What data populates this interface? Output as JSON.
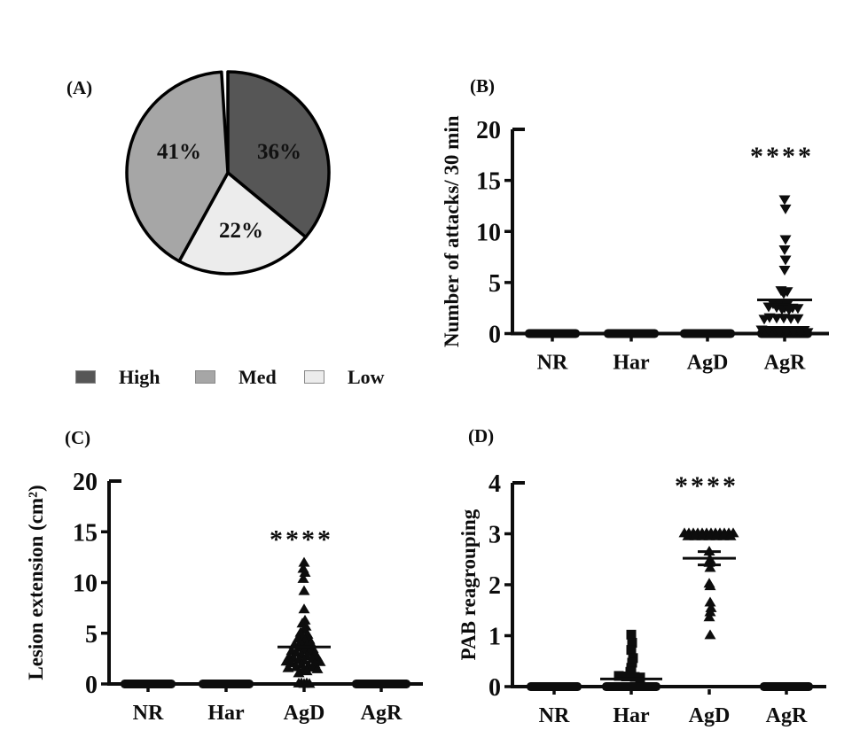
{
  "chart_data": [
    {
      "type": "pie",
      "panel": "(A)",
      "slices_clockwise_from_top": [
        {
          "name": "High",
          "pct": 36,
          "pct_label": "36%",
          "color": "#565656"
        },
        {
          "name": "Low",
          "pct": 22,
          "pct_label": "22%",
          "color": "#ececec"
        },
        {
          "name": "Med",
          "pct": 41,
          "pct_label": "41%",
          "color": "#a6a6a6"
        }
      ],
      "legend": [
        {
          "name": "High",
          "color": "#565656"
        },
        {
          "name": "Med",
          "color": "#a6a6a6"
        },
        {
          "name": "Low",
          "color": "#ececec"
        }
      ]
    },
    {
      "type": "scatter",
      "panel": "(B)",
      "ylabel": "Number of attacks/ 30 min",
      "ylim": [
        0,
        20
      ],
      "yticks": [
        0,
        5,
        10,
        15,
        20
      ],
      "categories": [
        "NR",
        "Har",
        "AgD",
        "AgR"
      ],
      "significance": {
        "text": "****",
        "category": "AgR",
        "y": 17.4
      },
      "groups": [
        {
          "category": "NR",
          "marker": "tri-down",
          "zero_bar": true,
          "bar_halfwidth": 31,
          "points": []
        },
        {
          "category": "Har",
          "marker": "tri-down",
          "zero_bar": true,
          "bar_halfwidth": 31,
          "points": []
        },
        {
          "category": "AgD",
          "marker": "tri-down",
          "zero_bar": true,
          "bar_halfwidth": 31,
          "points": []
        },
        {
          "category": "AgR",
          "marker": "tri-down",
          "zero_bar": true,
          "bar_halfwidth": 31,
          "mean": 3.3,
          "mean_halfwidth": 31,
          "points": [
            [
              0,
              13.1
            ],
            [
              1,
              12.2
            ],
            [
              1,
              9.2
            ],
            [
              0,
              8.2
            ],
            [
              1,
              7.2
            ],
            [
              0,
              6.2
            ],
            [
              -4,
              4.2
            ],
            [
              3,
              4.1
            ],
            [
              -1,
              3.9
            ],
            [
              -13,
              2.9
            ],
            [
              -5,
              2.85
            ],
            [
              3,
              2.8
            ],
            [
              -18,
              2.6
            ],
            [
              -9,
              2.55
            ],
            [
              0,
              2.5
            ],
            [
              9,
              2.5
            ],
            [
              15,
              2.45
            ],
            [
              -3,
              2.35
            ],
            [
              5,
              2.3
            ],
            [
              -17,
              1.55
            ],
            [
              -9,
              1.5
            ],
            [
              -1,
              1.5
            ],
            [
              7,
              1.45
            ],
            [
              15,
              1.45
            ],
            [
              -23,
              1.4
            ],
            [
              -26,
              0.35
            ],
            [
              -18,
              0.3
            ],
            [
              -10,
              0.3
            ],
            [
              -2,
              0.3
            ],
            [
              6,
              0.3
            ],
            [
              14,
              0.3
            ],
            [
              22,
              0.3
            ],
            [
              -6,
              0.12
            ],
            [
              2,
              0.1
            ],
            [
              10,
              0.12
            ],
            [
              18,
              0.08
            ],
            [
              26,
              0.1
            ]
          ]
        }
      ]
    },
    {
      "type": "scatter",
      "panel": "(C)",
      "ylabel": "Lesion extension (cm²)",
      "ylim": [
        0,
        20
      ],
      "yticks": [
        0,
        5,
        10,
        15,
        20
      ],
      "categories": [
        "NR",
        "Har",
        "AgD",
        "AgR"
      ],
      "significance": {
        "text": "****",
        "category": "AgD",
        "y": 14.3
      },
      "groups": [
        {
          "category": "NR",
          "marker": "tri-up",
          "zero_bar": true,
          "bar_halfwidth": 31,
          "points": []
        },
        {
          "category": "Har",
          "marker": "tri-up",
          "zero_bar": true,
          "bar_halfwidth": 31,
          "points": []
        },
        {
          "category": "AgD",
          "marker": "tri-up",
          "zero_bar": false,
          "bar_halfwidth": 31,
          "mean": 3.65,
          "mean_halfwidth": 30,
          "points": [
            [
              0,
              12.0
            ],
            [
              -1,
              11.4
            ],
            [
              1,
              11.0
            ],
            [
              -1,
              10.4
            ],
            [
              0,
              9.2
            ],
            [
              0,
              7.4
            ],
            [
              1,
              6.3
            ],
            [
              -2,
              6.0
            ],
            [
              2,
              5.7
            ],
            [
              0,
              5.4
            ],
            [
              -4,
              5.1
            ],
            [
              4,
              4.9
            ],
            [
              -1,
              4.7
            ],
            [
              -7,
              4.5
            ],
            [
              6,
              4.4
            ],
            [
              1,
              4.3
            ],
            [
              -4,
              4.1
            ],
            [
              8,
              4.0
            ],
            [
              -11,
              3.9
            ],
            [
              3,
              3.8
            ],
            [
              -6,
              3.6
            ],
            [
              10,
              3.5
            ],
            [
              0,
              3.4
            ],
            [
              -14,
              3.3
            ],
            [
              6,
              3.2
            ],
            [
              -9,
              3.1
            ],
            [
              12,
              3.0
            ],
            [
              -3,
              2.9
            ],
            [
              3,
              2.8
            ],
            [
              -17,
              2.7
            ],
            [
              15,
              2.65
            ],
            [
              -12,
              2.55
            ],
            [
              9,
              2.5
            ],
            [
              -6,
              2.4
            ],
            [
              0,
              2.35
            ],
            [
              -20,
              2.25
            ],
            [
              18,
              2.2
            ],
            [
              -15,
              2.1
            ],
            [
              12,
              2.0
            ],
            [
              -3,
              1.95
            ],
            [
              5,
              1.85
            ],
            [
              -9,
              1.7
            ],
            [
              9,
              1.65
            ],
            [
              -18,
              1.6
            ],
            [
              15,
              1.5
            ],
            [
              -1,
              1.4
            ],
            [
              3,
              1.3
            ],
            [
              -6,
              1.1
            ],
            [
              -3,
              0.12
            ],
            [
              0,
              0.06
            ],
            [
              3,
              0.12
            ],
            [
              6,
              0.06
            ],
            [
              -6,
              0.1
            ]
          ]
        },
        {
          "category": "AgR",
          "marker": "tri-up",
          "zero_bar": true,
          "bar_halfwidth": 33,
          "points": []
        }
      ]
    },
    {
      "type": "scatter",
      "panel": "(D)",
      "ylabel": "PAB reagrouping",
      "ylim": [
        0,
        4
      ],
      "yticks": [
        0,
        1,
        2,
        3,
        4
      ],
      "categories": [
        "NR",
        "Har",
        "AgD",
        "AgR"
      ],
      "significance": {
        "text": "****",
        "category": "AgD",
        "y": 3.95
      },
      "groups": [
        {
          "category": "NR",
          "marker": "square",
          "zero_bar": true,
          "bar_halfwidth": 31,
          "points": []
        },
        {
          "category": "Har",
          "marker": "square",
          "zero_bar": true,
          "bar_halfwidth": 33,
          "mean": 0.15,
          "mean_halfwidth": 35,
          "points": [
            [
              0,
              1.02
            ],
            [
              1,
              0.86
            ],
            [
              0,
              0.72
            ],
            [
              2,
              0.56
            ],
            [
              1,
              0.47
            ],
            [
              0,
              0.37
            ],
            [
              -1,
              0.29
            ],
            [
              -14,
              0.21
            ],
            [
              -6,
              0.2
            ],
            [
              4,
              0.19
            ],
            [
              10,
              0.18
            ]
          ]
        },
        {
          "category": "AgD",
          "marker": "tri-up",
          "zero_bar": false,
          "bar_halfwidth": 31,
          "mean": 2.52,
          "mean_halfwidth": 30,
          "sem": 0.13,
          "points": [
            [
              -28,
              3.02
            ],
            [
              -23,
              3.02
            ],
            [
              -18,
              3.02
            ],
            [
              -13,
              3.02
            ],
            [
              -8,
              3.02
            ],
            [
              -3,
              3.02
            ],
            [
              2,
              3.02
            ],
            [
              7,
              3.02
            ],
            [
              12,
              3.02
            ],
            [
              17,
              3.02
            ],
            [
              22,
              3.02
            ],
            [
              27,
              3.02
            ],
            [
              -24,
              2.96
            ],
            [
              -16,
              2.96
            ],
            [
              -8,
              2.96
            ],
            [
              0,
              2.96
            ],
            [
              8,
              2.96
            ],
            [
              16,
              2.96
            ],
            [
              24,
              2.96
            ],
            [
              0,
              2.66
            ],
            [
              1,
              2.5
            ],
            [
              0,
              2.44
            ],
            [
              1,
              2.34
            ],
            [
              0,
              2.03
            ],
            [
              1,
              1.98
            ],
            [
              1,
              1.66
            ],
            [
              2,
              1.55
            ],
            [
              1,
              1.47
            ],
            [
              0,
              1.37
            ],
            [
              1,
              1.02
            ]
          ]
        },
        {
          "category": "AgR",
          "marker": "square",
          "zero_bar": true,
          "bar_halfwidth": 30,
          "points": []
        }
      ]
    }
  ]
}
